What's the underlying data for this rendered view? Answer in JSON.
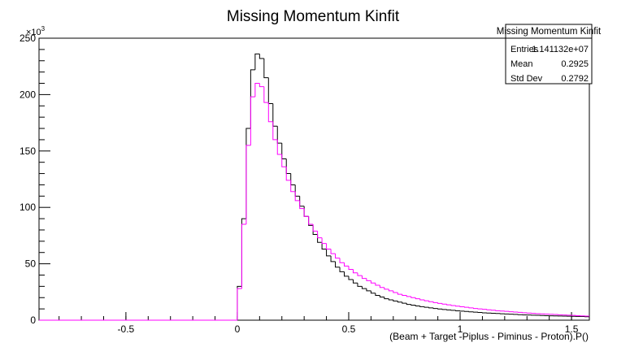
{
  "chart_data": {
    "type": "histogram",
    "title": "Missing Momentum Kinfit",
    "x_label": "(Beam + Target -Piplus - Piminus - Proton).P()",
    "y_multiplier": {
      "base": "×10",
      "exponent": "3"
    },
    "xlim": [
      -0.89,
      1.58
    ],
    "ylim": [
      0,
      250
    ],
    "xticks": [
      -0.5,
      0,
      0.5,
      1,
      1.5
    ],
    "yticks": [
      0,
      50,
      100,
      150,
      200,
      250
    ],
    "bins": [
      -0.89,
      0,
      0.02,
      0.04,
      0.06,
      0.08,
      0.1,
      0.12,
      0.14,
      0.16,
      0.18,
      0.2,
      0.22,
      0.24,
      0.26,
      0.28,
      0.3,
      0.32,
      0.34,
      0.36,
      0.38,
      0.4,
      0.42,
      0.44,
      0.46,
      0.48,
      0.5,
      0.52,
      0.54,
      0.56,
      0.58,
      0.6,
      0.62,
      0.64,
      0.66,
      0.68,
      0.7,
      0.72,
      0.74,
      0.76,
      0.78,
      0.8,
      0.82,
      0.84,
      0.86,
      0.88,
      0.9,
      0.92,
      0.94,
      0.96,
      0.98,
      1,
      1.02,
      1.04,
      1.06,
      1.08,
      1.1,
      1.12,
      1.14,
      1.16,
      1.18,
      1.2,
      1.22,
      1.24,
      1.26,
      1.28,
      1.3,
      1.32,
      1.34,
      1.36,
      1.38,
      1.4,
      1.42,
      1.44,
      1.46,
      1.48,
      1.5,
      1.52,
      1.54,
      1.56,
      1.58
    ],
    "series": [
      {
        "color": "#000000",
        "values": [
          0,
          30,
          90,
          170,
          222,
          236,
          232,
          215,
          192,
          172,
          157,
          143,
          130,
          120,
          110,
          101,
          92,
          84,
          76,
          69,
          63,
          57,
          52,
          47,
          43,
          39,
          36,
          33,
          30,
          28,
          26,
          24,
          22,
          20.5,
          19,
          18,
          17,
          16,
          15,
          14,
          13.3,
          12.6,
          12,
          11.4,
          10.9,
          10.4,
          9.9,
          9.5,
          9.1,
          8.7,
          8.3,
          8.0,
          7.7,
          7.4,
          7.1,
          6.8,
          6.5,
          6.3,
          6.1,
          5.9,
          5.7,
          5.5,
          5.3,
          5.1,
          4.9,
          4.7,
          4.6,
          4.4,
          4.3,
          4.1,
          4.0,
          3.9,
          3.8,
          3.7,
          3.6,
          3.5,
          3.4,
          3.3,
          3.2,
          3.1
        ]
      },
      {
        "color": "#ff00ff",
        "values": [
          0,
          28,
          85,
          155,
          198,
          210,
          207,
          193,
          176,
          160,
          147,
          136,
          124,
          114,
          106,
          99,
          92,
          85,
          79,
          73,
          68,
          63,
          59,
          55,
          51,
          48,
          45,
          42,
          39.5,
          37,
          35,
          33,
          31,
          29,
          27.5,
          26,
          24.5,
          23,
          22,
          21,
          20,
          19,
          18,
          17.2,
          16.4,
          15.6,
          14.9,
          14.2,
          13.6,
          13,
          12.4,
          11.9,
          11.4,
          10.9,
          10.4,
          10,
          9.6,
          9.2,
          8.8,
          8.4,
          8.1,
          7.8,
          7.5,
          7.2,
          6.9,
          6.6,
          6.3,
          6.0,
          5.8,
          5.6,
          5.4,
          5.2,
          5.0,
          4.8,
          4.6,
          4.4,
          4.2,
          4.0,
          3.8,
          3.6
        ]
      }
    ],
    "stats": {
      "title": "Missing Momentum Kinfit",
      "rows": [
        [
          "Entries",
          "1.141132e+07"
        ],
        [
          "Mean",
          "0.2925"
        ],
        [
          "Std Dev",
          "0.2792"
        ]
      ]
    }
  }
}
